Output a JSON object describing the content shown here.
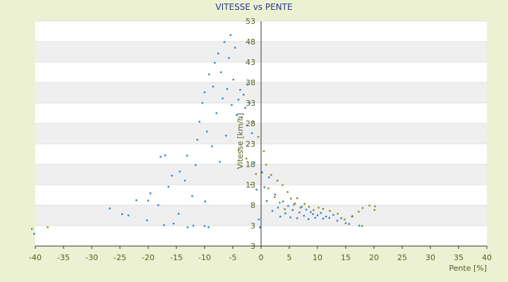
{
  "chart_data": {
    "type": "scatter",
    "title": "VITESSE vs PENTE",
    "xlabel": "Pente [%]",
    "ylabel": "Vitesse [km/h]",
    "xlim": [
      -40,
      40
    ],
    "ylim": [
      -2,
      53
    ],
    "x_ticks": [
      "-40",
      "-35",
      "-30",
      "-25",
      "-20",
      "-15",
      "-10",
      "-5",
      "0",
      "5",
      "10",
      "15",
      "20",
      "25",
      "30",
      "35",
      "40"
    ],
    "y_ticks": [
      "3",
      "3",
      "8",
      "13",
      "18",
      "23",
      "28",
      "33",
      "38",
      "43",
      "48",
      "53"
    ],
    "grid": true,
    "banded_background": true,
    "legend": "none",
    "colors": {
      "background": "#ecf1d3",
      "plot_light": "#ffffff",
      "plot_band": "#efefef",
      "series_blue": "#2e7fd1",
      "series_olive": "#8c8a1e",
      "axis": "#333333",
      "title": "#2b3a8a",
      "tick_text": "#555e20"
    },
    "series": [
      {
        "color": "series_blue",
        "points": [
          [
            -40.2,
            1.0
          ],
          [
            -15.5,
            3.5
          ],
          [
            -13.0,
            2.6
          ],
          [
            -12.0,
            3.0
          ],
          [
            -10.0,
            2.9
          ],
          [
            -9.3,
            2.6
          ],
          [
            -17.2,
            3.1
          ],
          [
            -26.8,
            7.2
          ],
          [
            -24.6,
            5.8
          ],
          [
            -23.5,
            5.5
          ],
          [
            -22.1,
            9.2
          ],
          [
            -20.2,
            4.3
          ],
          [
            -20.0,
            9.1
          ],
          [
            -19.6,
            10.9
          ],
          [
            -18.2,
            8.0
          ],
          [
            -17.8,
            19.8
          ],
          [
            -17.0,
            20.2
          ],
          [
            -16.4,
            12.5
          ],
          [
            -15.8,
            15.2
          ],
          [
            -14.6,
            5.9
          ],
          [
            -14.4,
            16.2
          ],
          [
            -13.5,
            14.0
          ],
          [
            -13.1,
            20.1
          ],
          [
            -12.2,
            10.2
          ],
          [
            -11.6,
            17.8
          ],
          [
            -11.3,
            24.0
          ],
          [
            -10.9,
            28.4
          ],
          [
            -10.4,
            33.0
          ],
          [
            -10.0,
            35.6
          ],
          [
            -9.9,
            8.9
          ],
          [
            -9.6,
            26.0
          ],
          [
            -9.2,
            40.0
          ],
          [
            -8.7,
            22.4
          ],
          [
            -8.5,
            37.0
          ],
          [
            -8.2,
            42.8
          ],
          [
            -7.9,
            30.5
          ],
          [
            -7.6,
            45.1
          ],
          [
            -7.3,
            18.6
          ],
          [
            -7.1,
            40.5
          ],
          [
            -6.8,
            34.1
          ],
          [
            -6.5,
            47.9
          ],
          [
            -6.2,
            25.0
          ],
          [
            -6.0,
            36.4
          ],
          [
            -5.7,
            44.0
          ],
          [
            -5.4,
            49.6
          ],
          [
            -5.2,
            32.5
          ],
          [
            -4.9,
            38.7
          ],
          [
            -4.6,
            46.5
          ],
          [
            -4.3,
            30.0
          ],
          [
            -4.0,
            33.8
          ],
          [
            -3.7,
            36.2
          ],
          [
            -3.4,
            29.4
          ],
          [
            -3.1,
            35.0
          ],
          [
            -2.8,
            31.8
          ],
          [
            -2.4,
            37.5
          ],
          [
            -2.0,
            33.0
          ],
          [
            -1.6,
            25.6
          ],
          [
            -1.2,
            18.4
          ],
          [
            -0.8,
            11.8
          ],
          [
            -0.4,
            4.5
          ],
          [
            -0.2,
            2.6
          ],
          [
            0.2,
            16.0
          ],
          [
            0.6,
            12.4
          ],
          [
            1.0,
            9.0
          ],
          [
            1.4,
            14.8
          ],
          [
            2.0,
            6.6
          ],
          [
            2.5,
            10.6
          ],
          [
            3.0,
            7.4
          ],
          [
            3.4,
            5.2
          ],
          [
            3.9,
            8.9
          ],
          [
            4.3,
            6.0
          ],
          [
            4.8,
            7.8
          ],
          [
            5.2,
            5.0
          ],
          [
            5.6,
            6.8
          ],
          [
            6.0,
            8.4
          ],
          [
            6.4,
            4.8
          ],
          [
            6.8,
            6.2
          ],
          [
            7.2,
            7.6
          ],
          [
            7.6,
            5.4
          ],
          [
            8.0,
            6.9
          ],
          [
            8.4,
            4.6
          ],
          [
            8.8,
            6.3
          ],
          [
            9.2,
            5.8
          ],
          [
            9.6,
            4.9
          ],
          [
            10.0,
            5.5
          ],
          [
            10.6,
            6.1
          ],
          [
            11.0,
            4.7
          ],
          [
            11.5,
            5.2
          ],
          [
            12.1,
            4.9
          ],
          [
            12.8,
            5.6
          ],
          [
            13.5,
            4.2
          ],
          [
            14.2,
            4.8
          ],
          [
            15.0,
            3.6
          ],
          [
            15.6,
            3.4
          ],
          [
            16.2,
            5.3
          ],
          [
            17.4,
            3.0
          ]
        ]
      },
      {
        "color": "series_olive",
        "points": [
          [
            -40.6,
            2.2
          ],
          [
            -37.8,
            2.6
          ],
          [
            -4.0,
            21.5
          ],
          [
            -2.6,
            19.4
          ],
          [
            -1.8,
            13.0
          ],
          [
            -1.4,
            28.5
          ],
          [
            -0.9,
            15.6
          ],
          [
            -0.5,
            24.7
          ],
          [
            0.5,
            21.2
          ],
          [
            0.9,
            17.9
          ],
          [
            1.3,
            12.1
          ],
          [
            1.8,
            15.4
          ],
          [
            2.4,
            10.0
          ],
          [
            2.9,
            14.0
          ],
          [
            3.3,
            8.6
          ],
          [
            3.8,
            12.9
          ],
          [
            4.2,
            7.0
          ],
          [
            4.7,
            11.2
          ],
          [
            5.3,
            9.6
          ],
          [
            5.8,
            8.1
          ],
          [
            6.4,
            9.7
          ],
          [
            7.0,
            7.4
          ],
          [
            7.7,
            8.3
          ],
          [
            8.5,
            7.6
          ],
          [
            9.3,
            6.8
          ],
          [
            10.2,
            7.4
          ],
          [
            11.0,
            7.1
          ],
          [
            12.2,
            6.6
          ],
          [
            13.6,
            5.9
          ],
          [
            14.8,
            4.5
          ],
          [
            16.1,
            5.2
          ],
          [
            17.3,
            6.4
          ],
          [
            18.0,
            7.3
          ],
          [
            19.2,
            7.9
          ],
          [
            20.2,
            7.7
          ],
          [
            20.1,
            6.8
          ],
          [
            17.9,
            2.9
          ]
        ]
      }
    ]
  }
}
